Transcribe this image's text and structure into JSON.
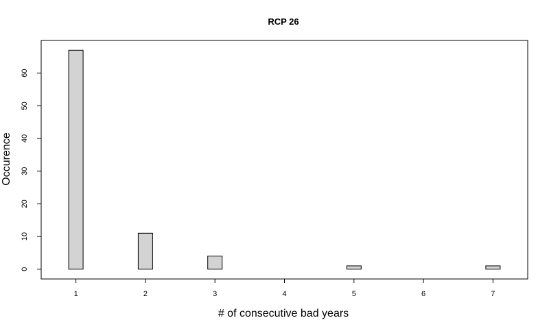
{
  "chart_data": {
    "type": "bar",
    "title": "RCP 26",
    "xlabel": "# of consecutive bad years",
    "ylabel": "Occurence",
    "categories": [
      "1",
      "2",
      "3",
      "4",
      "5",
      "6",
      "7"
    ],
    "x": [
      1,
      2,
      3,
      4,
      5,
      6,
      7
    ],
    "values": [
      67,
      11,
      4,
      0,
      1,
      0,
      1
    ],
    "xlim": [
      0.5,
      7.5
    ],
    "ylim": [
      -3,
      70
    ],
    "yticks": [
      0,
      10,
      20,
      30,
      40,
      50,
      60
    ],
    "grid": false,
    "legend": "none",
    "bar_color": "#d3d3d3",
    "edge_color": "#000000"
  }
}
